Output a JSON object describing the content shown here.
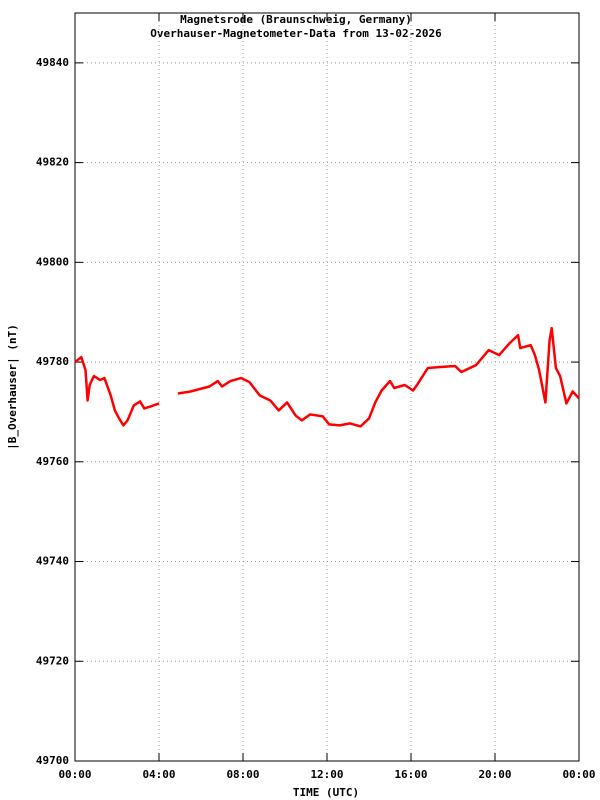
{
  "chart_data": {
    "type": "line",
    "title": "Magnetsrode (Braunschweig, Germany)",
    "subtitle": "Overhauser-Magnetometer-Data from 13-02-2026",
    "x_label": "TIME (UTC)",
    "y_label": "|B_Overhauser| (nT)",
    "x": [
      0,
      0.3,
      0.5,
      0.6,
      0.7,
      0.9,
      1.2,
      1.4,
      1.7,
      1.9,
      2.1,
      2.3,
      2.5,
      2.8,
      3.1,
      3.3,
      3.6,
      4.0,
      4.4,
      4.9,
      5.5,
      6.4,
      6.8,
      7.0,
      7.4,
      7.9,
      8.3,
      8.8,
      9.3,
      9.7,
      10.1,
      10.5,
      10.8,
      11.2,
      11.8,
      12.1,
      12.6,
      13.1,
      13.6,
      14.0,
      14.3,
      14.6,
      15.0,
      15.2,
      15.7,
      16.1,
      16.3,
      16.8,
      17.4,
      18.1,
      18.4,
      19.1,
      19.7,
      20.2,
      20.7,
      21.1,
      21.2,
      21.7,
      21.9,
      22.1,
      22.4,
      22.6,
      22.7,
      22.9,
      23.1,
      23.4,
      23.7,
      24.0
    ],
    "series": [
      {
        "name": "|B_Overhauser|",
        "color": "#ff0000",
        "values": [
          49780.0,
          49781.0,
          49778.4,
          49772.3,
          49775.4,
          49777.2,
          49776.4,
          49776.8,
          49773.3,
          49770.3,
          49768.7,
          49767.3,
          49768.3,
          49771.3,
          49772.1,
          49770.7,
          49771.1,
          49771.7,
          null,
          49773.7,
          49774.1,
          49775.1,
          49776.2,
          49775.1,
          49776.2,
          49776.8,
          49776.0,
          49773.3,
          49772.3,
          49770.3,
          49771.9,
          49769.3,
          49768.3,
          49769.5,
          49769.1,
          49767.5,
          49767.3,
          49767.7,
          49767.1,
          49768.7,
          49771.9,
          49774.3,
          49776.2,
          49774.8,
          49775.4,
          49774.3,
          49775.5,
          49778.8,
          49779.0,
          49779.2,
          49778.0,
          49779.4,
          49782.4,
          49781.4,
          49783.8,
          49785.4,
          49782.8,
          49783.4,
          49781.4,
          49778.4,
          49771.9,
          49784.4,
          49786.8,
          49778.8,
          49777.2,
          49771.7,
          49774.1,
          49772.7
        ]
      }
    ],
    "xlim": [
      0,
      24
    ],
    "xticks": [
      {
        "value": 0,
        "label": "00:00"
      },
      {
        "value": 4,
        "label": "04:00"
      },
      {
        "value": 8,
        "label": "08:00"
      },
      {
        "value": 12,
        "label": "12:00"
      },
      {
        "value": 16,
        "label": "16:00"
      },
      {
        "value": 20,
        "label": "20:00"
      },
      {
        "value": 24,
        "label": "00:00"
      }
    ],
    "ylim": [
      49700,
      49850
    ],
    "yticks": [
      49700,
      49720,
      49740,
      49760,
      49780,
      49800,
      49820,
      49840
    ],
    "grid": true
  }
}
